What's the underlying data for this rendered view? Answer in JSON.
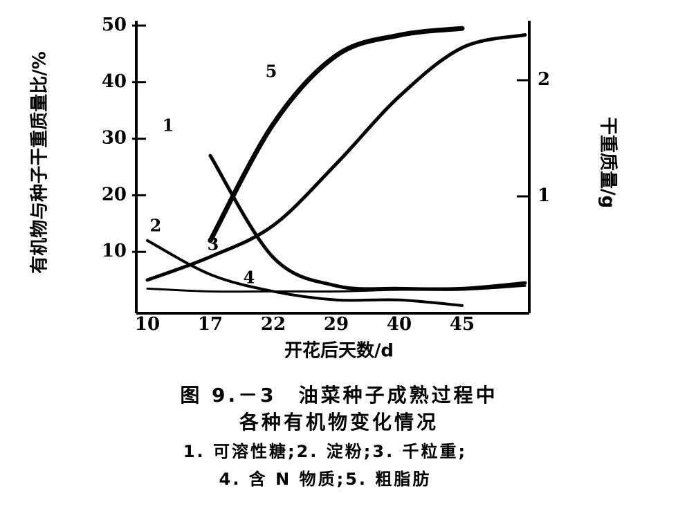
{
  "chart_data": {
    "type": "line",
    "y_label": "有机物与种子干重质量比/%",
    "y2_label": "干重质量/g",
    "x_label": "开花后天数/d",
    "categories": [
      "10",
      "17",
      "22",
      "29",
      "40",
      "45",
      null
    ],
    "ylim": [
      0,
      50
    ],
    "yticks": [
      10,
      20,
      30,
      40,
      50
    ],
    "y2lim": [
      0,
      2.5
    ],
    "y2ticks": [
      1,
      2
    ],
    "series": [
      {
        "name": "1",
        "color": "#000000",
        "values": [
          null,
          27,
          9,
          4,
          3.5,
          3.5,
          4.5
        ]
      },
      {
        "name": "2",
        "color": "#000000",
        "values": [
          12,
          6,
          3,
          1.5,
          1.5,
          0.5,
          null
        ]
      },
      {
        "name": "3",
        "color": "#000000",
        "axis": "y2",
        "values": [
          0.28,
          0.48,
          0.75,
          1.28,
          1.86,
          2.28,
          2.39
        ]
      },
      {
        "name": "4",
        "color": "#000000",
        "values": [
          3.5,
          3,
          3,
          3,
          3.3,
          3.3,
          4
        ]
      },
      {
        "name": "5",
        "color": "#000000",
        "values": [
          null,
          12,
          32.6,
          44.7,
          48.3,
          49.5,
          null
        ]
      }
    ],
    "caption": [
      "图 9.－3　油菜种子成熟过程中",
      "各种有机物变化情况",
      "1. 可溶性糖;2. 淀粉;3. 千粒重;",
      "4. 含 N 物质;5. 粗脂肪"
    ]
  }
}
